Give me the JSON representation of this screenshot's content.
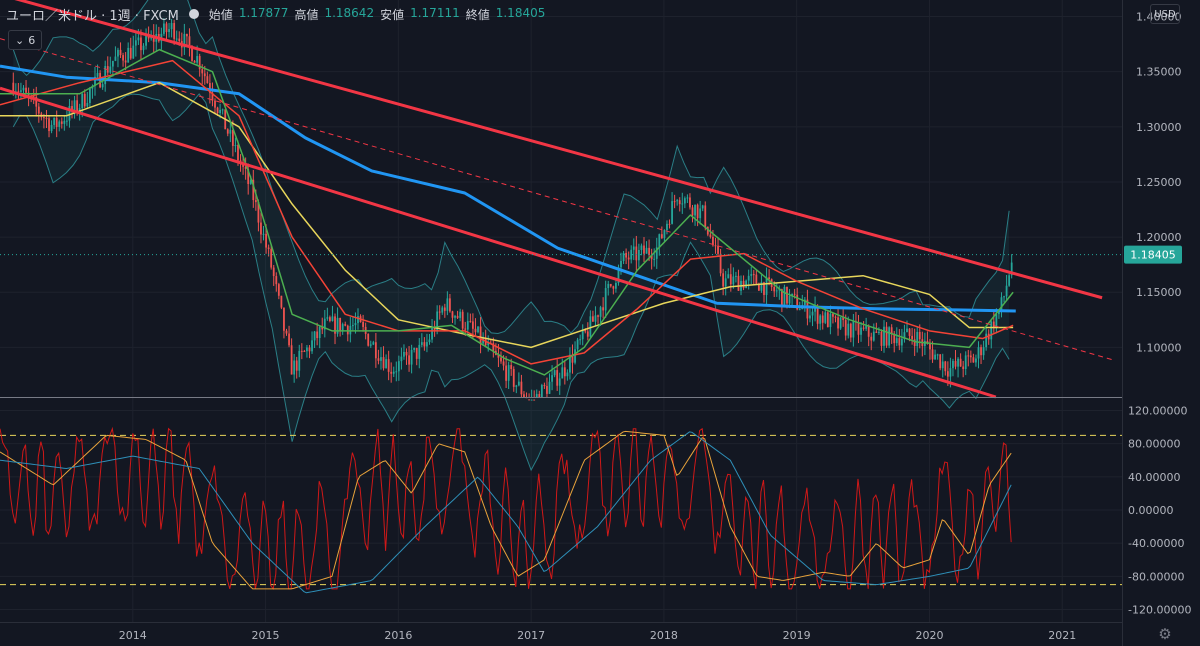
{
  "header": {
    "symbol": "ユーロ／米ドル · 1週 · FXCM",
    "ohlc": [
      {
        "label": "始値",
        "value": "1.17877"
      },
      {
        "label": "高値",
        "value": "1.18642"
      },
      {
        "label": "安値",
        "value": "1.17111"
      },
      {
        "label": "終値",
        "value": "1.18405"
      }
    ],
    "indicator_toggle": "6",
    "currency": "USD"
  },
  "colors": {
    "background": "#131722",
    "up": "#26a69a",
    "down": "#ef5350",
    "channel": "#f23645",
    "ma_blue": "#2196f3",
    "ma_green": "#4caf50",
    "ma_red": "#f44336",
    "ma_yellow": "#e8d65b",
    "bollinger": "#2a7e86",
    "osc_red": "#d01818",
    "osc_orange": "#e8a33b",
    "osc_blue": "#2e8fb8",
    "dashed_level": "#e8d65b"
  },
  "chart_data": [
    {
      "type": "candlestick",
      "x_ticks": [
        "2014",
        "2015",
        "2016",
        "2017",
        "2018",
        "2019",
        "2020",
        "2021"
      ],
      "y_ticks": [
        "1.40000",
        "1.35000",
        "1.30000",
        "1.25000",
        "1.20000",
        "1.15000",
        "1.10000"
      ],
      "ylim": [
        1.055,
        1.415
      ],
      "last_price": "1.18405",
      "price_path": [
        [
          2013.1,
          1.34
        ],
        [
          2013.4,
          1.3
        ],
        [
          2013.6,
          1.32
        ],
        [
          2013.85,
          1.36
        ],
        [
          2014.15,
          1.38
        ],
        [
          2014.3,
          1.39
        ],
        [
          2014.5,
          1.36
        ],
        [
          2014.7,
          1.3
        ],
        [
          2014.9,
          1.24
        ],
        [
          2015.05,
          1.17
        ],
        [
          2015.2,
          1.08
        ],
        [
          2015.45,
          1.12
        ],
        [
          2015.7,
          1.12
        ],
        [
          2015.95,
          1.08
        ],
        [
          2016.2,
          1.1
        ],
        [
          2016.35,
          1.14
        ],
        [
          2016.6,
          1.11
        ],
        [
          2016.8,
          1.08
        ],
        [
          2017.0,
          1.05
        ],
        [
          2017.25,
          1.08
        ],
        [
          2017.45,
          1.12
        ],
        [
          2017.7,
          1.18
        ],
        [
          2017.95,
          1.19
        ],
        [
          2018.1,
          1.24
        ],
        [
          2018.3,
          1.22
        ],
        [
          2018.45,
          1.16
        ],
        [
          2018.7,
          1.16
        ],
        [
          2019.0,
          1.14
        ],
        [
          2019.3,
          1.12
        ],
        [
          2019.6,
          1.11
        ],
        [
          2019.9,
          1.11
        ],
        [
          2020.15,
          1.08
        ],
        [
          2020.35,
          1.09
        ],
        [
          2020.55,
          1.14
        ],
        [
          2020.63,
          1.184
        ]
      ],
      "channel_upper": [
        [
          2013.0,
          1.42
        ],
        [
          2021.3,
          1.145
        ]
      ],
      "channel_lower": [
        [
          2013.0,
          1.335
        ],
        [
          2020.5,
          1.055
        ]
      ],
      "channel_mid_dashed": [
        [
          2013.0,
          1.38
        ],
        [
          2021.4,
          1.088
        ]
      ],
      "moving_averages": [
        {
          "color": "blue",
          "points": [
            [
              2013.0,
              1.355
            ],
            [
              2013.5,
              1.345
            ],
            [
              2014.2,
              1.34
            ],
            [
              2014.8,
              1.33
            ],
            [
              2015.3,
              1.29
            ],
            [
              2015.8,
              1.26
            ],
            [
              2016.5,
              1.24
            ],
            [
              2017.2,
              1.19
            ],
            [
              2017.8,
              1.165
            ],
            [
              2018.4,
              1.14
            ],
            [
              2019.0,
              1.137
            ],
            [
              2019.6,
              1.135
            ],
            [
              2020.2,
              1.134
            ],
            [
              2020.65,
              1.133
            ]
          ]
        },
        {
          "color": "yellow",
          "points": [
            [
              2013.0,
              1.31
            ],
            [
              2013.5,
              1.31
            ],
            [
              2014.2,
              1.34
            ],
            [
              2014.8,
              1.3
            ],
            [
              2015.2,
              1.23
            ],
            [
              2015.6,
              1.17
            ],
            [
              2016.0,
              1.125
            ],
            [
              2016.5,
              1.112
            ],
            [
              2017.0,
              1.1
            ],
            [
              2017.5,
              1.12
            ],
            [
              2018.0,
              1.14
            ],
            [
              2018.5,
              1.155
            ],
            [
              2019.0,
              1.16
            ],
            [
              2019.5,
              1.165
            ],
            [
              2020.0,
              1.148
            ],
            [
              2020.3,
              1.118
            ],
            [
              2020.63,
              1.118
            ]
          ]
        },
        {
          "color": "red",
          "points": [
            [
              2013.0,
              1.32
            ],
            [
              2013.6,
              1.34
            ],
            [
              2014.3,
              1.36
            ],
            [
              2014.8,
              1.31
            ],
            [
              2015.2,
              1.2
            ],
            [
              2015.6,
              1.13
            ],
            [
              2016.0,
              1.115
            ],
            [
              2016.5,
              1.115
            ],
            [
              2017.0,
              1.085
            ],
            [
              2017.4,
              1.095
            ],
            [
              2017.8,
              1.135
            ],
            [
              2018.2,
              1.18
            ],
            [
              2018.6,
              1.185
            ],
            [
              2019.0,
              1.16
            ],
            [
              2019.5,
              1.135
            ],
            [
              2020.0,
              1.115
            ],
            [
              2020.4,
              1.108
            ],
            [
              2020.63,
              1.12
            ]
          ]
        },
        {
          "color": "green",
          "points": [
            [
              2013.0,
              1.33
            ],
            [
              2013.6,
              1.33
            ],
            [
              2014.2,
              1.37
            ],
            [
              2014.6,
              1.35
            ],
            [
              2014.9,
              1.25
            ],
            [
              2015.2,
              1.13
            ],
            [
              2015.5,
              1.115
            ],
            [
              2016.0,
              1.115
            ],
            [
              2016.4,
              1.12
            ],
            [
              2016.8,
              1.09
            ],
            [
              2017.1,
              1.075
            ],
            [
              2017.4,
              1.1
            ],
            [
              2017.8,
              1.17
            ],
            [
              2018.2,
              1.22
            ],
            [
              2018.5,
              1.19
            ],
            [
              2018.9,
              1.15
            ],
            [
              2019.4,
              1.125
            ],
            [
              2019.9,
              1.105
            ],
            [
              2020.3,
              1.1
            ],
            [
              2020.63,
              1.15
            ]
          ]
        }
      ]
    },
    {
      "type": "line",
      "y_ticks": [
        "120.00000",
        "80.00000",
        "40.00000",
        "0.00000",
        "-40.00000",
        "-80.00000",
        "-120.00000"
      ],
      "ylim": [
        -135,
        135
      ],
      "levels": [
        90,
        -90
      ],
      "series": [
        {
          "color": "orange",
          "points": [
            [
              2013.0,
              70
            ],
            [
              2013.4,
              30
            ],
            [
              2013.8,
              90
            ],
            [
              2014.1,
              85
            ],
            [
              2014.4,
              60
            ],
            [
              2014.6,
              -40
            ],
            [
              2014.9,
              -95
            ],
            [
              2015.2,
              -95
            ],
            [
              2015.5,
              -80
            ],
            [
              2015.7,
              40
            ],
            [
              2015.9,
              60
            ],
            [
              2016.1,
              20
            ],
            [
              2016.3,
              80
            ],
            [
              2016.5,
              70
            ],
            [
              2016.7,
              -20
            ],
            [
              2016.9,
              -80
            ],
            [
              2017.1,
              -60
            ],
            [
              2017.4,
              60
            ],
            [
              2017.7,
              95
            ],
            [
              2018.0,
              90
            ],
            [
              2018.1,
              40
            ],
            [
              2018.3,
              90
            ],
            [
              2018.5,
              -20
            ],
            [
              2018.7,
              -80
            ],
            [
              2018.9,
              -85
            ],
            [
              2019.2,
              -75
            ],
            [
              2019.4,
              -80
            ],
            [
              2019.6,
              -40
            ],
            [
              2019.8,
              -70
            ],
            [
              2020.0,
              -60
            ],
            [
              2020.1,
              -10
            ],
            [
              2020.3,
              -55
            ],
            [
              2020.45,
              30
            ],
            [
              2020.63,
              72
            ]
          ]
        },
        {
          "color": "blue",
          "points": [
            [
              2013.0,
              60
            ],
            [
              2013.5,
              50
            ],
            [
              2014.0,
              65
            ],
            [
              2014.5,
              50
            ],
            [
              2014.9,
              -40
            ],
            [
              2015.3,
              -100
            ],
            [
              2015.8,
              -85
            ],
            [
              2016.2,
              -20
            ],
            [
              2016.6,
              40
            ],
            [
              2016.9,
              -20
            ],
            [
              2017.1,
              -75
            ],
            [
              2017.5,
              -20
            ],
            [
              2017.9,
              60
            ],
            [
              2018.2,
              95
            ],
            [
              2018.5,
              60
            ],
            [
              2018.8,
              -30
            ],
            [
              2019.2,
              -85
            ],
            [
              2019.6,
              -90
            ],
            [
              2020.0,
              -80
            ],
            [
              2020.3,
              -70
            ],
            [
              2020.63,
              35
            ]
          ]
        }
      ]
    }
  ]
}
